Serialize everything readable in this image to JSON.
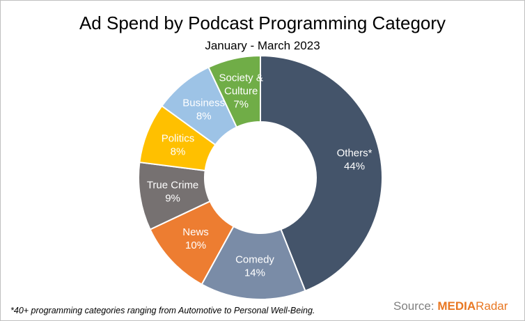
{
  "title": "Ad Spend by Podcast Programming Category",
  "subtitle": "January - March 2023",
  "footnote": "*40+ programming categories ranging from Automotive to Personal Well-Being.",
  "source": {
    "prefix": "Source: ",
    "brand_part1": "MEDIA",
    "brand_part2": "Radar"
  },
  "chart_data": {
    "type": "pie",
    "title": "Ad Spend by Podcast Programming Category",
    "subtitle": "January - March 2023",
    "donut": true,
    "start_angle_deg": 0,
    "direction": "clockwise",
    "slices": [
      {
        "label": "Others*",
        "value": 44,
        "color": "#44546a",
        "label_color": "#ffffff"
      },
      {
        "label": "Comedy",
        "value": 14,
        "color": "#7a8ca7",
        "label_color": "#ffffff"
      },
      {
        "label": "News",
        "value": 10,
        "color": "#ed7d31",
        "label_color": "#ffffff"
      },
      {
        "label": "True Crime",
        "value": 9,
        "color": "#767171",
        "label_color": "#ffffff"
      },
      {
        "label": "Politics",
        "value": 8,
        "color": "#ffc000",
        "label_color": "#ffffff"
      },
      {
        "label": "Business",
        "value": 8,
        "color": "#9dc3e6",
        "label_color": "#ffffff"
      },
      {
        "label": "Society & Culture",
        "value": 7,
        "color": "#70ad47",
        "label_color": "#ffffff"
      }
    ],
    "value_suffix": "%"
  }
}
